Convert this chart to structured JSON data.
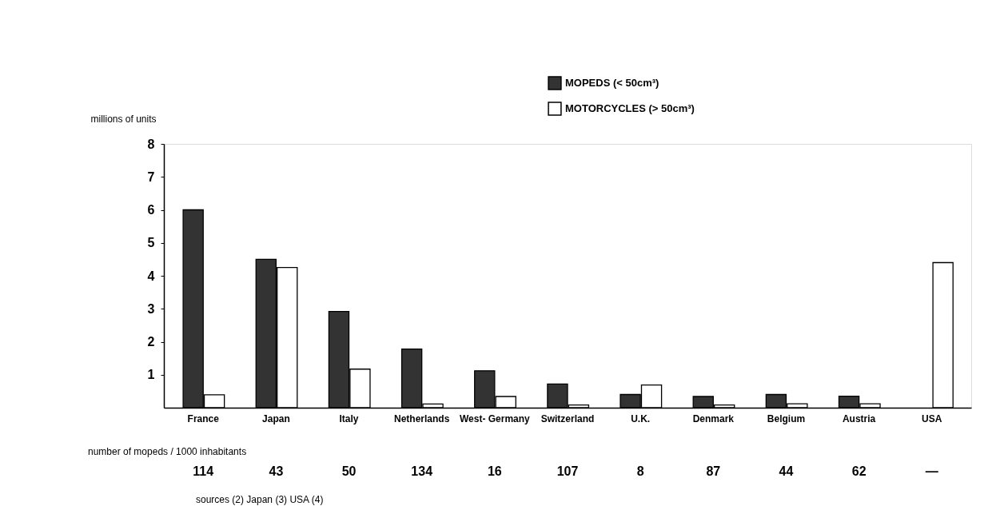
{
  "chart_data": {
    "type": "bar",
    "ylabel": "millions of units",
    "categories": [
      "France",
      "Japan",
      "Italy",
      "Netherlands",
      "West- Germany",
      "Switzerland",
      "U.K.",
      "Denmark",
      "Belgium",
      "Austria",
      "USA"
    ],
    "series": [
      {
        "name": "MOPEDS (< 50cm³)",
        "color": "#333333",
        "values": [
          6.0,
          4.5,
          2.92,
          1.78,
          1.12,
          0.72,
          0.4,
          0.34,
          0.4,
          0.35,
          null
        ]
      },
      {
        "name": "MOTORCYCLES (> 50cm³)",
        "color": "#ffffff",
        "values": [
          0.39,
          4.25,
          1.17,
          0.11,
          0.34,
          0.08,
          0.69,
          0.08,
          0.12,
          0.12,
          4.4
        ]
      }
    ],
    "ylim": [
      0,
      8
    ],
    "yticks": [
      1,
      2,
      3,
      4,
      5,
      6,
      7,
      8
    ],
    "legend": "top",
    "annotations": [
      "number of mopeds / 1000 inhabitants",
      "114",
      "43",
      "50",
      "134",
      "16",
      "107",
      "8",
      "87",
      "44",
      "62",
      "—",
      "sources (2)      Japan (3)      USA (4)"
    ]
  }
}
